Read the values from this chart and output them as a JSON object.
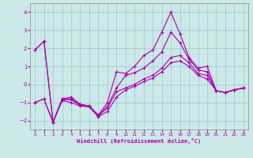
{
  "xlabel": "Windchill (Refroidissement éolien,°C)",
  "bg_color": "#cce8e8",
  "line_color": "#aa00aa",
  "xlim": [
    -0.5,
    23.5
  ],
  "ylim": [
    -2.5,
    4.5
  ],
  "yticks": [
    -2,
    -1,
    0,
    1,
    2,
    3,
    4
  ],
  "xticks": [
    0,
    1,
    2,
    3,
    4,
    5,
    6,
    7,
    8,
    9,
    10,
    11,
    12,
    13,
    14,
    15,
    16,
    17,
    18,
    19,
    20,
    21,
    22,
    23
  ],
  "series": [
    {
      "x": [
        0,
        1,
        2,
        3,
        4,
        5,
        6,
        7,
        8,
        9,
        10,
        11,
        12,
        13,
        14,
        15,
        16,
        17,
        18,
        19,
        20,
        21,
        22,
        23
      ],
      "y": [
        1.9,
        2.4,
        -2.1,
        -0.8,
        -0.7,
        -1.1,
        -1.2,
        -1.7,
        -1.0,
        0.7,
        0.6,
        1.0,
        1.6,
        1.9,
        2.9,
        4.0,
        2.8,
        1.5,
        0.9,
        1.0,
        -0.35,
        -0.45,
        -0.3,
        -0.2
      ]
    },
    {
      "x": [
        0,
        1,
        2,
        3,
        4,
        5,
        6,
        7,
        8,
        9,
        10,
        11,
        12,
        13,
        14,
        15,
        16,
        17,
        18,
        19,
        20,
        21,
        22,
        23
      ],
      "y": [
        1.9,
        2.4,
        -2.1,
        -0.8,
        -0.8,
        -1.1,
        -1.2,
        -1.7,
        -1.2,
        -0.2,
        0.5,
        0.65,
        0.9,
        1.3,
        1.8,
        2.9,
        2.3,
        1.4,
        0.8,
        0.7,
        -0.35,
        -0.45,
        -0.3,
        -0.2
      ]
    },
    {
      "x": [
        0,
        1,
        2,
        3,
        4,
        5,
        6,
        7,
        8,
        9,
        10,
        11,
        12,
        13,
        14,
        15,
        16,
        17,
        18,
        19,
        20,
        21,
        22,
        23
      ],
      "y": [
        -1.0,
        -0.8,
        -2.1,
        -0.85,
        -0.85,
        -1.15,
        -1.2,
        -1.75,
        -1.3,
        -0.4,
        -0.2,
        0.0,
        0.3,
        0.5,
        0.9,
        1.5,
        1.6,
        1.2,
        0.6,
        0.5,
        -0.35,
        -0.45,
        -0.3,
        -0.2
      ]
    },
    {
      "x": [
        0,
        1,
        2,
        3,
        4,
        5,
        6,
        7,
        8,
        9,
        10,
        11,
        12,
        13,
        14,
        15,
        16,
        17,
        18,
        19,
        20,
        21,
        22,
        23
      ],
      "y": [
        -1.0,
        -0.8,
        -2.1,
        -0.9,
        -1.0,
        -1.2,
        -1.25,
        -1.8,
        -1.5,
        -0.7,
        -0.3,
        -0.1,
        0.15,
        0.35,
        0.7,
        1.2,
        1.3,
        1.0,
        0.5,
        0.3,
        -0.35,
        -0.45,
        -0.3,
        -0.2
      ]
    }
  ]
}
